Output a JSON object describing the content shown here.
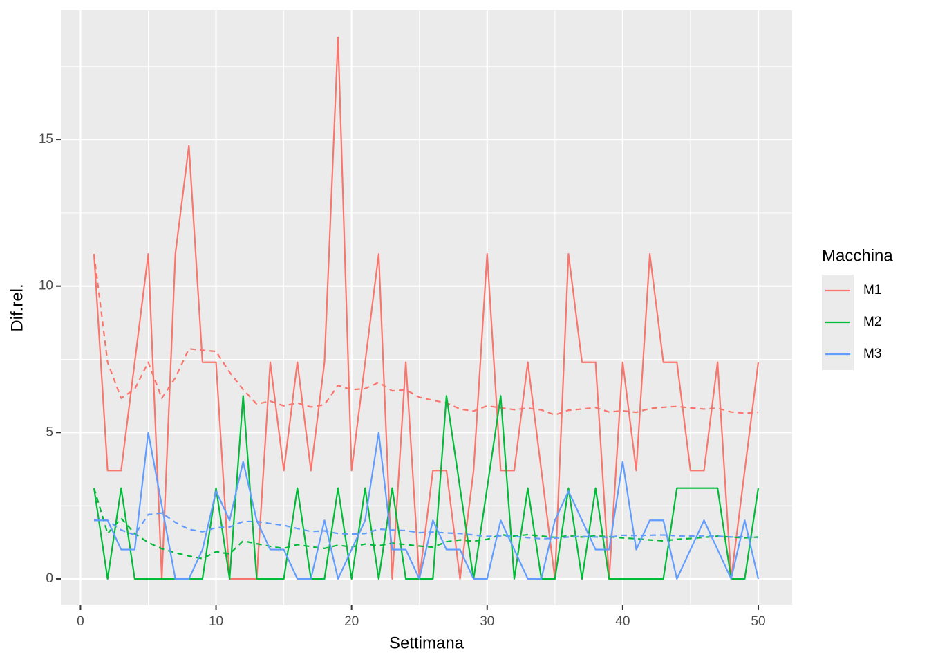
{
  "chart_data": {
    "type": "line",
    "x_label": "Settimana",
    "y_label": "Dif.rel.",
    "legend_title": "Macchina",
    "legend": "right",
    "grid": true,
    "x": [
      1,
      2,
      3,
      4,
      5,
      6,
      7,
      8,
      9,
      10,
      11,
      12,
      13,
      14,
      15,
      16,
      17,
      18,
      19,
      20,
      21,
      22,
      23,
      24,
      25,
      26,
      27,
      28,
      29,
      30,
      31,
      32,
      33,
      34,
      35,
      36,
      37,
      38,
      39,
      40,
      41,
      42,
      43,
      44,
      45,
      46,
      47,
      48,
      49,
      50
    ],
    "xlim": [
      -1.45,
      52.5
    ],
    "xticks": [
      0,
      10,
      20,
      30,
      40,
      50
    ],
    "minor_xticks": [
      5,
      15,
      25,
      35,
      45
    ],
    "ylim": [
      -0.9,
      19.42
    ],
    "yticks": [
      0,
      5,
      10,
      15
    ],
    "minor_yticks": [
      2.5,
      7.5,
      12.5,
      17.5
    ],
    "series": [
      {
        "name": "M1",
        "color": "#F8766D",
        "values": [
          11.1,
          3.7,
          3.7,
          7.4,
          11.1,
          0,
          11.1,
          14.8,
          7.4,
          7.4,
          0,
          0,
          0,
          7.4,
          3.7,
          7.4,
          3.7,
          7.4,
          18.5,
          3.7,
          7.4,
          11.1,
          0,
          7.4,
          0,
          3.7,
          3.7,
          0,
          3.7,
          11.1,
          3.7,
          3.7,
          7.4,
          3.7,
          0,
          11.1,
          7.4,
          7.4,
          0,
          7.4,
          3.7,
          11.1,
          7.4,
          7.4,
          3.7,
          3.7,
          7.4,
          0,
          3.7,
          7.4
        ],
        "mean_values": [
          11.1,
          7.4,
          6.17,
          6.48,
          7.4,
          6.17,
          6.87,
          7.86,
          7.81,
          7.77,
          7.06,
          6.47,
          5.97,
          6.07,
          5.91,
          6.01,
          5.87,
          5.95,
          6.61,
          6.46,
          6.5,
          6.71,
          6.42,
          6.46,
          6.2,
          6.1,
          6.01,
          5.8,
          5.73,
          5.91,
          5.84,
          5.78,
          5.83,
          5.77,
          5.6,
          5.76,
          5.8,
          5.85,
          5.7,
          5.74,
          5.69,
          5.82,
          5.86,
          5.89,
          5.84,
          5.8,
          5.83,
          5.7,
          5.66,
          5.69
        ]
      },
      {
        "name": "M2",
        "color": "#00BA38",
        "values": [
          3.1,
          0,
          3.1,
          0,
          0,
          0,
          0,
          0,
          0,
          3.1,
          0,
          6.25,
          0,
          0,
          0,
          3.1,
          0,
          0,
          3.1,
          0,
          3.1,
          0,
          3.1,
          0,
          0,
          0,
          6.25,
          3.1,
          0,
          3.1,
          6.25,
          0,
          3.1,
          0,
          0,
          3.1,
          0,
          3.1,
          0,
          0,
          0,
          0,
          0,
          3.1,
          3.1,
          3.1,
          3.1,
          0,
          0,
          3.1
        ],
        "mean_values": [
          3.1,
          1.55,
          2.07,
          1.55,
          1.24,
          1.03,
          0.89,
          0.78,
          0.69,
          0.93,
          0.85,
          1.3,
          1.2,
          1.11,
          1.04,
          1.17,
          1.1,
          1.04,
          1.15,
          1.09,
          1.19,
          1.13,
          1.22,
          1.17,
          1.12,
          1.08,
          1.27,
          1.33,
          1.29,
          1.35,
          1.51,
          1.46,
          1.51,
          1.46,
          1.42,
          1.47,
          1.43,
          1.47,
          1.44,
          1.4,
          1.37,
          1.33,
          1.3,
          1.35,
          1.38,
          1.42,
          1.46,
          1.43,
          1.4,
          1.43
        ]
      },
      {
        "name": "M3",
        "color": "#619CFF",
        "values": [
          2,
          2,
          1,
          1,
          5,
          2.5,
          0,
          0,
          1,
          3,
          2,
          4,
          2,
          1,
          1,
          0,
          0,
          2,
          0,
          1,
          2,
          5,
          1,
          1,
          0,
          2,
          1,
          1,
          0,
          0,
          2,
          1,
          0,
          0,
          2,
          3,
          2,
          1,
          1,
          4,
          1,
          2,
          2,
          0,
          1,
          2,
          1,
          0,
          2,
          0
        ],
        "mean_values": [
          2,
          2,
          1.67,
          1.5,
          2.2,
          2.25,
          1.93,
          1.69,
          1.61,
          1.75,
          1.77,
          1.96,
          1.96,
          1.89,
          1.83,
          1.72,
          1.62,
          1.64,
          1.55,
          1.53,
          1.55,
          1.7,
          1.67,
          1.65,
          1.58,
          1.6,
          1.57,
          1.55,
          1.5,
          1.45,
          1.47,
          1.45,
          1.41,
          1.37,
          1.39,
          1.43,
          1.45,
          1.43,
          1.42,
          1.49,
          1.48,
          1.49,
          1.5,
          1.47,
          1.46,
          1.47,
          1.46,
          1.43,
          1.44,
          1.41
        ]
      }
    ]
  }
}
